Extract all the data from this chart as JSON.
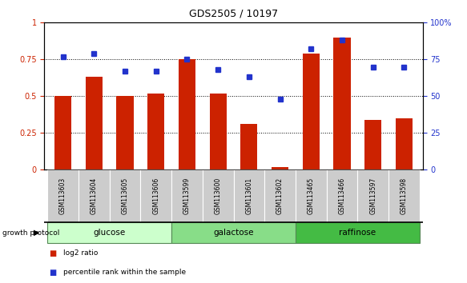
{
  "title": "GDS2505 / 10197",
  "categories": [
    "GSM113603",
    "GSM113604",
    "GSM113605",
    "GSM113606",
    "GSM113599",
    "GSM113600",
    "GSM113601",
    "GSM113602",
    "GSM113465",
    "GSM113466",
    "GSM113597",
    "GSM113598"
  ],
  "log2_ratio": [
    0.5,
    0.63,
    0.5,
    0.52,
    0.75,
    0.52,
    0.31,
    0.02,
    0.79,
    0.9,
    0.34,
    0.35
  ],
  "percentile_rank": [
    77,
    79,
    67,
    67,
    75,
    68,
    63,
    48,
    82,
    88,
    70,
    70
  ],
  "bar_color": "#cc2200",
  "dot_color": "#2233cc",
  "groups": [
    {
      "label": "glucose",
      "start": 0,
      "end": 3,
      "color": "#ccffcc"
    },
    {
      "label": "galactose",
      "start": 4,
      "end": 7,
      "color": "#88dd88"
    },
    {
      "label": "raffinose",
      "start": 8,
      "end": 11,
      "color": "#44bb44"
    }
  ],
  "left_ylim": [
    0,
    1.0
  ],
  "right_ylim": [
    0,
    100
  ],
  "left_yticks": [
    0,
    0.25,
    0.5,
    0.75,
    1.0
  ],
  "right_yticks": [
    0,
    25,
    50,
    75,
    100
  ],
  "left_ytick_labels": [
    "0",
    "0.25",
    "0.5",
    "0.75",
    "1"
  ],
  "right_ytick_labels": [
    "0",
    "25",
    "50",
    "75",
    "100%"
  ],
  "legend_items": [
    {
      "label": "log2 ratio",
      "color": "#cc2200"
    },
    {
      "label": "percentile rank within the sample",
      "color": "#2233cc"
    }
  ],
  "growth_protocol_label": "growth protocol",
  "tick_label_bg": "#cccccc",
  "group_colors": [
    "#ccffcc",
    "#88dd88",
    "#44bb44"
  ]
}
